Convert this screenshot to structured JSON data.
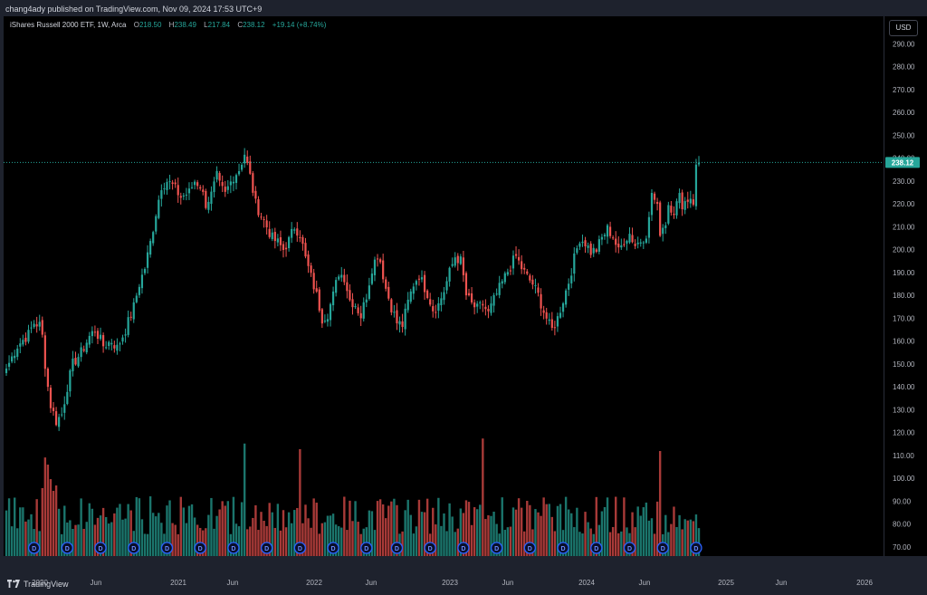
{
  "header": {
    "published": "chang4ady published on TradingView.com, Nov 09, 2024 17:53 UTC+9"
  },
  "legend": {
    "symbol": "iShares Russell 2000 ETF, 1W, Arca",
    "o_label": "O",
    "o_value": "218.50",
    "h_label": "H",
    "h_value": "238.49",
    "l_label": "L",
    "l_value": "217.84",
    "c_label": "C",
    "c_value": "238.12",
    "change": "+19.14 (+8.74%)"
  },
  "currency_button": "USD",
  "branding": "TradingView",
  "colors": {
    "up": "#26a69a",
    "down": "#ef5350",
    "background": "#000000",
    "price_tag": "#26a69a",
    "dividend_marker": "#2962ff"
  },
  "chart_data": {
    "type": "candlestick",
    "interval": "1W",
    "y_axis_ticks": [
      "290.00",
      "280.00",
      "270.00",
      "260.00",
      "250.00",
      "240.00",
      "230.00",
      "220.00",
      "210.00",
      "200.00",
      "190.00",
      "180.00",
      "170.00",
      "160.00",
      "150.00",
      "140.00",
      "130.00",
      "120.00",
      "110.00",
      "100.00",
      "90.00",
      "80.00",
      "70.00"
    ],
    "ylim": [
      66,
      302
    ],
    "x_axis_ticks": [
      "2020",
      "Jun",
      "2021",
      "Jun",
      "2022",
      "Jun",
      "2023",
      "Jun",
      "2024",
      "Jun",
      "2025",
      "Jun",
      "2026"
    ],
    "last_price_label": "238.12",
    "last_price": 238.12,
    "dividend_marker_label": "D",
    "dividend_count": 21,
    "price_path": [
      [
        0,
        148
      ],
      [
        4,
        158
      ],
      [
        8,
        163
      ],
      [
        10,
        168
      ],
      [
        12,
        167
      ],
      [
        13,
        162
      ],
      [
        14,
        150
      ],
      [
        15,
        140
      ],
      [
        16,
        132
      ],
      [
        18,
        125
      ],
      [
        20,
        128
      ],
      [
        22,
        140
      ],
      [
        24,
        150
      ],
      [
        27,
        155
      ],
      [
        30,
        162
      ],
      [
        32,
        165
      ],
      [
        35,
        158
      ],
      [
        38,
        160
      ],
      [
        40,
        157
      ],
      [
        43,
        165
      ],
      [
        46,
        175
      ],
      [
        48,
        185
      ],
      [
        50,
        192
      ],
      [
        52,
        203
      ],
      [
        54,
        216
      ],
      [
        56,
        228
      ],
      [
        58,
        230
      ],
      [
        60,
        228
      ],
      [
        63,
        223
      ],
      [
        66,
        225
      ],
      [
        68,
        230
      ],
      [
        70,
        228
      ],
      [
        72,
        220
      ],
      [
        74,
        224
      ],
      [
        76,
        232
      ],
      [
        77,
        228
      ],
      [
        79,
        224
      ],
      [
        80,
        227
      ],
      [
        82,
        232
      ],
      [
        84,
        235
      ],
      [
        86,
        242
      ],
      [
        88,
        232
      ],
      [
        90,
        220
      ],
      [
        92,
        215
      ],
      [
        94,
        210
      ],
      [
        96,
        205
      ],
      [
        98,
        203
      ],
      [
        100,
        200
      ],
      [
        102,
        204
      ],
      [
        104,
        210
      ],
      [
        106,
        207
      ],
      [
        108,
        196
      ],
      [
        110,
        188
      ],
      [
        112,
        180
      ],
      [
        114,
        170
      ],
      [
        116,
        172
      ],
      [
        118,
        180
      ],
      [
        120,
        190
      ],
      [
        122,
        188
      ],
      [
        124,
        178
      ],
      [
        126,
        176
      ],
      [
        128,
        171
      ],
      [
        130,
        180
      ],
      [
        132,
        192
      ],
      [
        134,
        198
      ],
      [
        135,
        195
      ],
      [
        137,
        183
      ],
      [
        139,
        175
      ],
      [
        141,
        168
      ],
      [
        143,
        167
      ],
      [
        145,
        177
      ],
      [
        147,
        185
      ],
      [
        149,
        189
      ],
      [
        150,
        186
      ],
      [
        152,
        181
      ],
      [
        154,
        174
      ],
      [
        156,
        176
      ],
      [
        158,
        182
      ],
      [
        160,
        190
      ],
      [
        162,
        197
      ],
      [
        164,
        195
      ],
      [
        165,
        188
      ],
      [
        166,
        180
      ],
      [
        168,
        176
      ],
      [
        170,
        174
      ],
      [
        172,
        176
      ],
      [
        174,
        172
      ],
      [
        176,
        178
      ],
      [
        178,
        183
      ],
      [
        180,
        188
      ],
      [
        182,
        193
      ],
      [
        184,
        197
      ],
      [
        186,
        192
      ],
      [
        188,
        188
      ],
      [
        190,
        185
      ],
      [
        192,
        180
      ],
      [
        194,
        173
      ],
      [
        196,
        167
      ],
      [
        197,
        165
      ],
      [
        199,
        170
      ],
      [
        201,
        178
      ],
      [
        203,
        186
      ],
      [
        205,
        196
      ],
      [
        207,
        205
      ],
      [
        209,
        203
      ],
      [
        211,
        199
      ],
      [
        213,
        200
      ],
      [
        215,
        205
      ],
      [
        217,
        209
      ],
      [
        219,
        206
      ],
      [
        221,
        199
      ],
      [
        223,
        204
      ],
      [
        225,
        207
      ],
      [
        227,
        202
      ],
      [
        229,
        204
      ],
      [
        231,
        207
      ],
      [
        232,
        213
      ],
      [
        233,
        225
      ],
      [
        235,
        218
      ],
      [
        236,
        208
      ],
      [
        238,
        212
      ],
      [
        239,
        220
      ],
      [
        241,
        217
      ],
      [
        243,
        223
      ],
      [
        244,
        220
      ],
      [
        246,
        222
      ],
      [
        247,
        223
      ],
      [
        248,
        221
      ],
      [
        249,
        236
      ],
      [
        250,
        238
      ]
    ]
  }
}
